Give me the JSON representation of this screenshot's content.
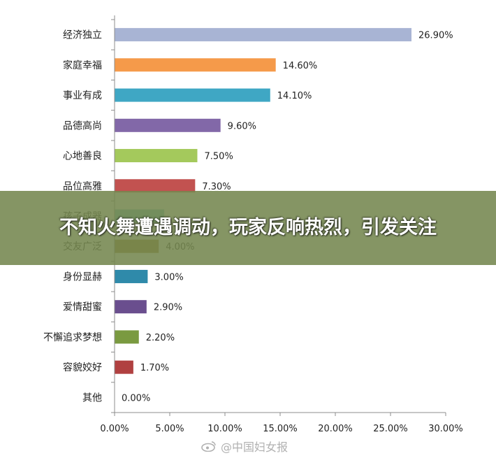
{
  "banner": {
    "headline": "不知火舞遭遇调动，玩家反响热烈，引发关注"
  },
  "watermark": {
    "text": "@中国妇女报"
  },
  "colors": {
    "axis": "#8c8c8c",
    "text": "#222222"
  },
  "chart_data": {
    "type": "bar",
    "orientation": "horizontal",
    "categories": [
      "经济独立",
      "家庭幸福",
      "事业有成",
      "品德高尚",
      "心地善良",
      "品位高雅",
      "孩子成器",
      "交友广泛",
      "身份显赫",
      "爱情甜蜜",
      "不懈追求梦想",
      "容貌姣好",
      "其他"
    ],
    "values": [
      26.9,
      14.6,
      14.1,
      9.6,
      7.5,
      7.3,
      4.5,
      4.0,
      3.0,
      2.9,
      2.2,
      1.7,
      0.0
    ],
    "data_labels": [
      "26.90%",
      "14.60%",
      "14.10%",
      "9.60%",
      "7.50%",
      "7.30%",
      "",
      "4.00%",
      "3.00%",
      "2.90%",
      "2.20%",
      "1.70%",
      "0.00%"
    ],
    "bar_colors": [
      "#a8b4d4",
      "#f59a4a",
      "#3fa7c4",
      "#8268a8",
      "#a4c95c",
      "#c25250",
      "#6cc0c4",
      "#9a7a2a",
      "#2f8aaa",
      "#6a4e8e",
      "#7a9a40",
      "#b04040",
      "#cccccc"
    ],
    "xlim": [
      0,
      30
    ],
    "xticks": [
      "0.00%",
      "5.00%",
      "10.00%",
      "15.00%",
      "20.00%",
      "25.00%",
      "30.00%"
    ],
    "xtick_values": [
      0,
      5,
      10,
      15,
      20,
      25,
      30
    ],
    "grid": false,
    "title": "",
    "xlabel": "",
    "ylabel": ""
  }
}
